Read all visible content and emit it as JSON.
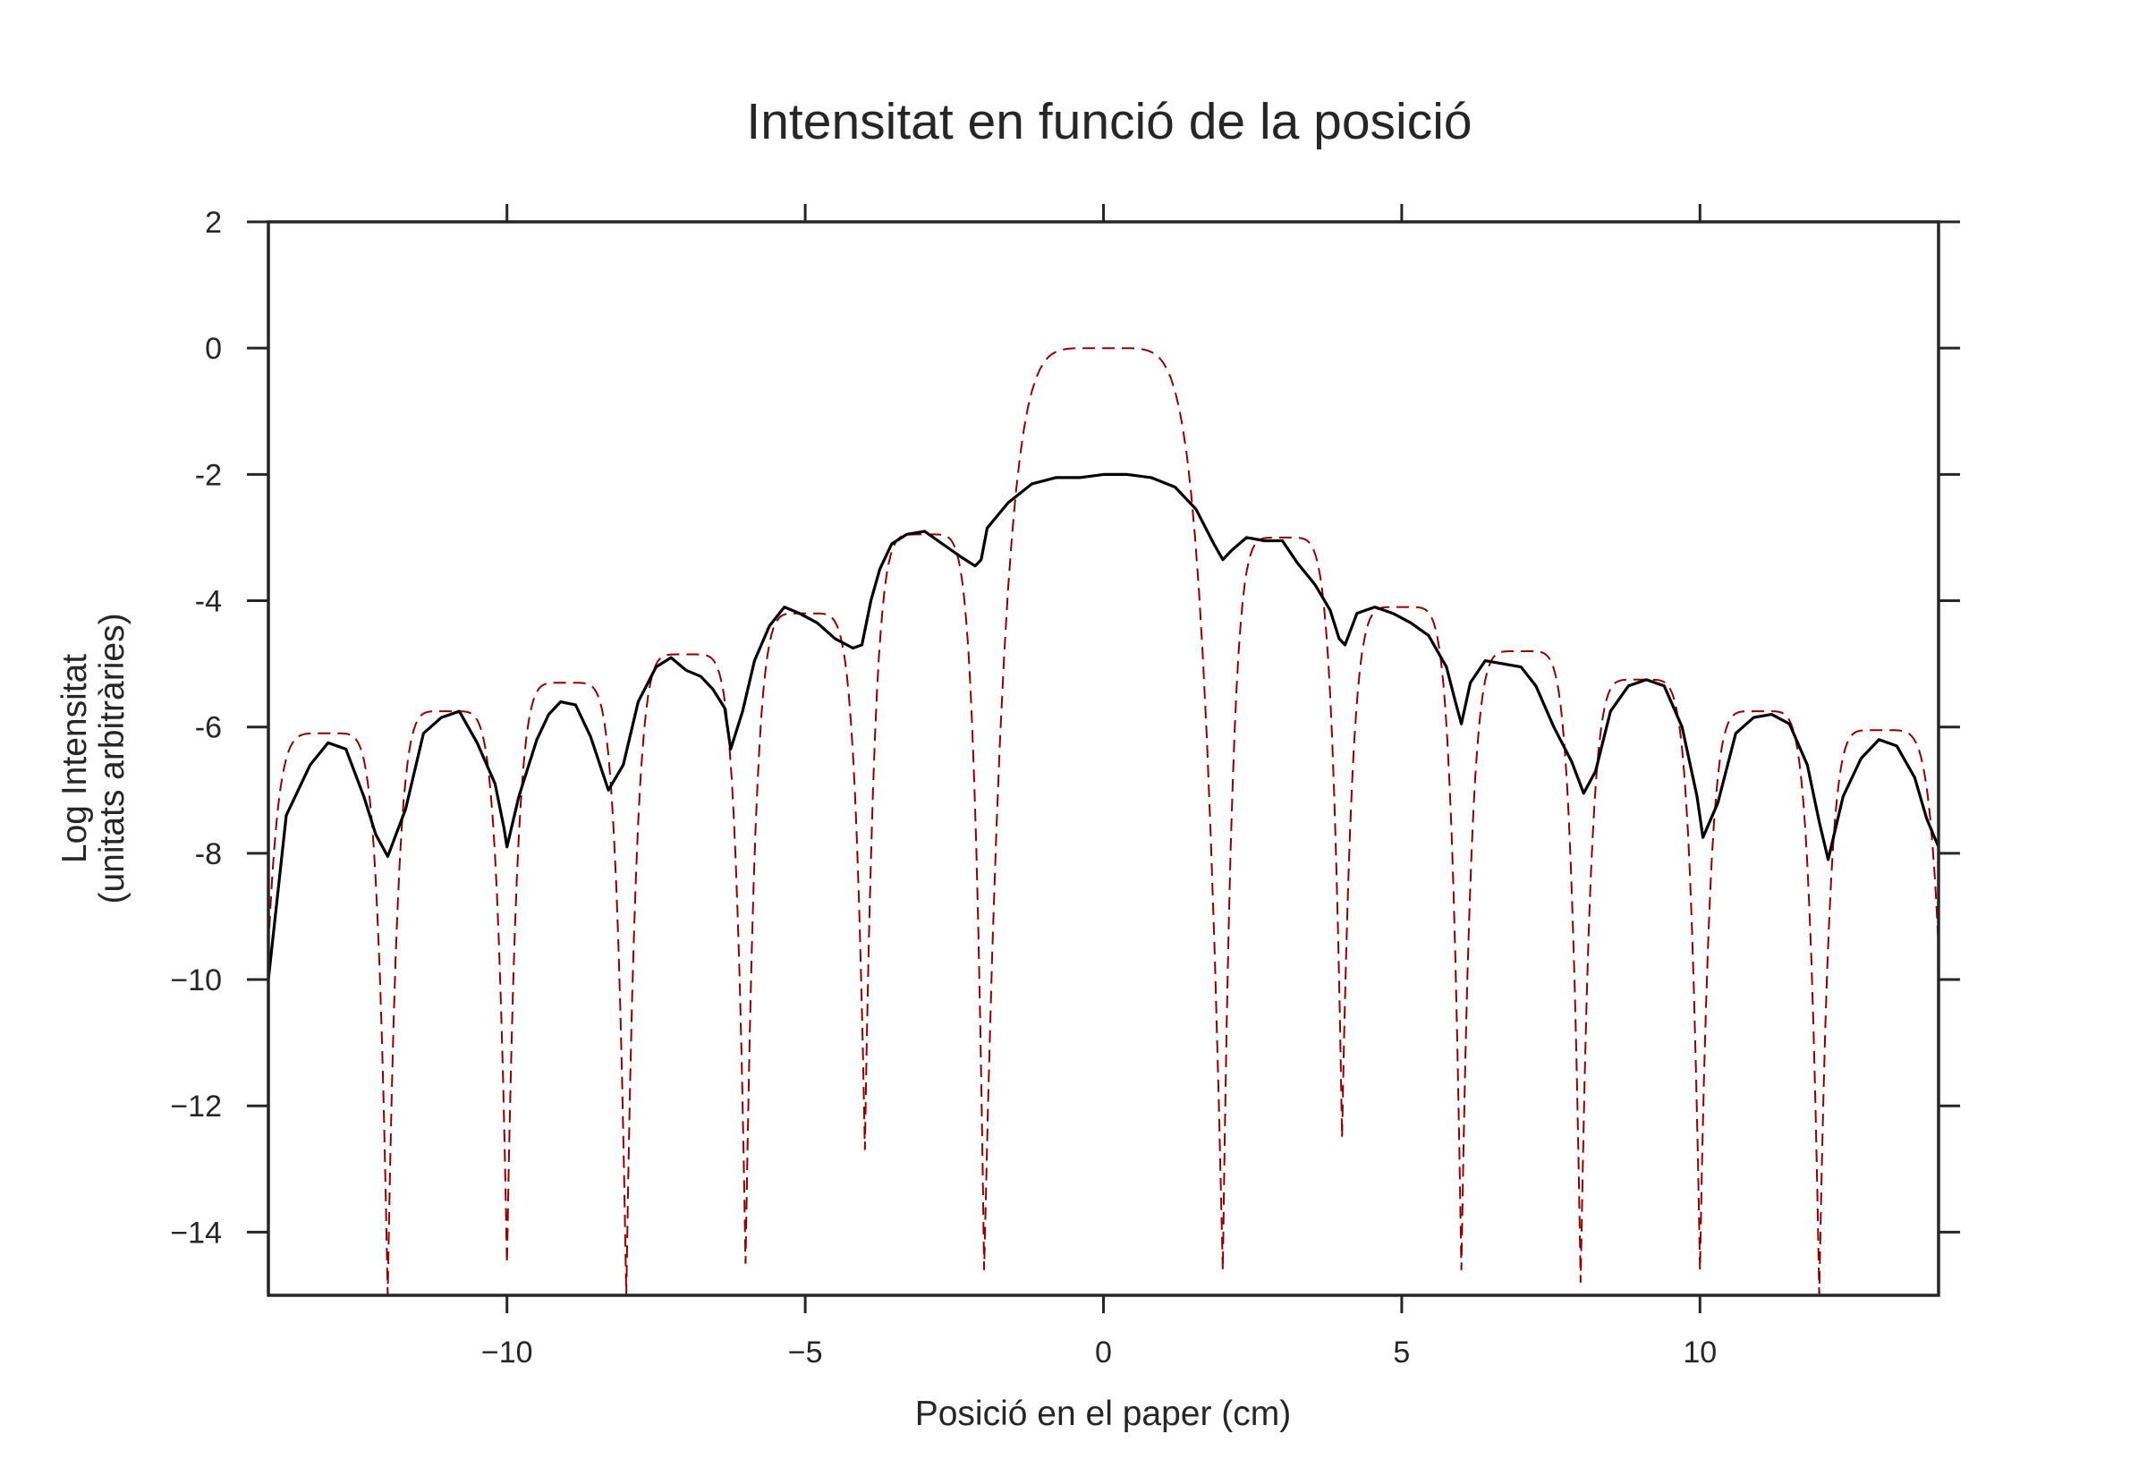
{
  "chart_data": {
    "type": "line",
    "title": "Intensitat en funció de la posició",
    "xlabel": "Posició en el paper (cm)",
    "ylabel": [
      "Log Intensitat",
      "(unitats arbitràries)"
    ],
    "xlim": [
      -14,
      14
    ],
    "ylim": [
      -15,
      2
    ],
    "x_ticks": [
      -10,
      -5,
      0,
      5,
      10
    ],
    "x_tick_labels": [
      "−10",
      "−5",
      "0",
      "5",
      "10"
    ],
    "y_ticks": [
      2,
      0,
      -2,
      -4,
      -6,
      -8,
      -10,
      -12,
      -14
    ],
    "y_tick_labels": [
      "2",
      "0",
      "-2",
      "-4",
      "-6",
      "-8",
      "−10",
      "−12",
      "−14"
    ],
    "grid": false,
    "legend": "none",
    "series": [
      {
        "style": "solid",
        "color": "#000000",
        "x": [
          -14,
          -13.7,
          -13.3,
          -13.0,
          -12.7,
          -12.4,
          -12.2,
          -12.0,
          -11.7,
          -11.4,
          -11.1,
          -10.8,
          -10.5,
          -10.2,
          -10.05,
          -10.0,
          -9.8,
          -9.5,
          -9.3,
          -9.1,
          -8.85,
          -8.6,
          -8.3,
          -8.05,
          -7.8,
          -7.5,
          -7.25,
          -7.0,
          -6.75,
          -6.55,
          -6.35,
          -6.25,
          -6.05,
          -5.85,
          -5.6,
          -5.35,
          -5.1,
          -4.8,
          -4.5,
          -4.2,
          -4.05,
          -3.9,
          -3.75,
          -3.55,
          -3.3,
          -3.0,
          -2.7,
          -2.4,
          -2.15,
          -2.05,
          -1.95,
          -1.6,
          -1.2,
          -0.8,
          -0.4,
          0,
          0.4,
          0.8,
          1.2,
          1.55,
          1.85,
          2.0,
          2.15,
          2.4,
          2.7,
          3.0,
          3.25,
          3.55,
          3.8,
          3.95,
          4.05,
          4.25,
          4.55,
          4.85,
          5.15,
          5.45,
          5.75,
          5.9,
          6.0,
          6.15,
          6.4,
          6.7,
          7.0,
          7.25,
          7.55,
          7.85,
          8.05,
          8.25,
          8.5,
          8.8,
          9.1,
          9.4,
          9.7,
          9.95,
          10.05,
          10.3,
          10.6,
          10.9,
          11.2,
          11.5,
          11.8,
          12.0,
          12.15,
          12.4,
          12.7,
          13.0,
          13.3,
          13.6,
          13.8,
          14.0
        ],
        "y": [
          -10.0,
          -7.4,
          -6.6,
          -6.25,
          -6.35,
          -7.1,
          -7.7,
          -8.05,
          -7.3,
          -6.1,
          -5.85,
          -5.75,
          -6.25,
          -6.9,
          -7.6,
          -7.9,
          -7.1,
          -6.2,
          -5.8,
          -5.6,
          -5.65,
          -6.15,
          -7.0,
          -6.6,
          -5.6,
          -5.05,
          -4.9,
          -5.1,
          -5.2,
          -5.4,
          -5.7,
          -6.35,
          -5.75,
          -4.95,
          -4.4,
          -4.1,
          -4.2,
          -4.35,
          -4.6,
          -4.75,
          -4.7,
          -4.0,
          -3.5,
          -3.1,
          -2.95,
          -2.9,
          -3.1,
          -3.3,
          -3.45,
          -3.35,
          -2.85,
          -2.45,
          -2.15,
          -2.05,
          -2.05,
          -2.0,
          -2.0,
          -2.05,
          -2.2,
          -2.55,
          -3.1,
          -3.35,
          -3.2,
          -3.0,
          -3.05,
          -3.05,
          -3.4,
          -3.75,
          -4.15,
          -4.6,
          -4.7,
          -4.2,
          -4.1,
          -4.2,
          -4.35,
          -4.55,
          -5.05,
          -5.6,
          -5.95,
          -5.3,
          -4.95,
          -5.0,
          -5.05,
          -5.35,
          -6.0,
          -6.55,
          -7.05,
          -6.7,
          -5.75,
          -5.35,
          -5.25,
          -5.35,
          -6.0,
          -7.1,
          -7.75,
          -7.2,
          -6.1,
          -5.85,
          -5.8,
          -5.95,
          -6.6,
          -7.5,
          -8.1,
          -7.1,
          -6.5,
          -6.2,
          -6.3,
          -6.8,
          -7.45,
          -7.9
        ]
      },
      {
        "style": "dashed",
        "color": "#8b0000",
        "envelope_peaks": [
          {
            "x": -13,
            "y": -6.1
          },
          {
            "x": -11,
            "y": -5.75
          },
          {
            "x": -9,
            "y": -5.3
          },
          {
            "x": -7,
            "y": -4.85
          },
          {
            "x": -5,
            "y": -4.2
          },
          {
            "x": -3,
            "y": -2.95
          },
          {
            "x": 0,
            "y": 0.0
          },
          {
            "x": 3,
            "y": -3.0
          },
          {
            "x": 5,
            "y": -4.1
          },
          {
            "x": 7,
            "y": -4.8
          },
          {
            "x": 9,
            "y": -5.25
          },
          {
            "x": 11,
            "y": -5.75
          },
          {
            "x": 13,
            "y": -6.05
          }
        ],
        "minima": [
          {
            "x": -12,
            "y": -15.0
          },
          {
            "x": -10,
            "y": -14.5
          },
          {
            "x": -8,
            "y": -15.0
          },
          {
            "x": -6,
            "y": -14.5
          },
          {
            "x": -4,
            "y": -12.7
          },
          {
            "x": -2,
            "y": -14.6
          },
          {
            "x": 2,
            "y": -14.6
          },
          {
            "x": 4,
            "y": -12.5
          },
          {
            "x": 6,
            "y": -14.6
          },
          {
            "x": 8,
            "y": -14.8
          },
          {
            "x": 10,
            "y": -14.6
          },
          {
            "x": 12,
            "y": -15.0
          }
        ]
      }
    ]
  }
}
